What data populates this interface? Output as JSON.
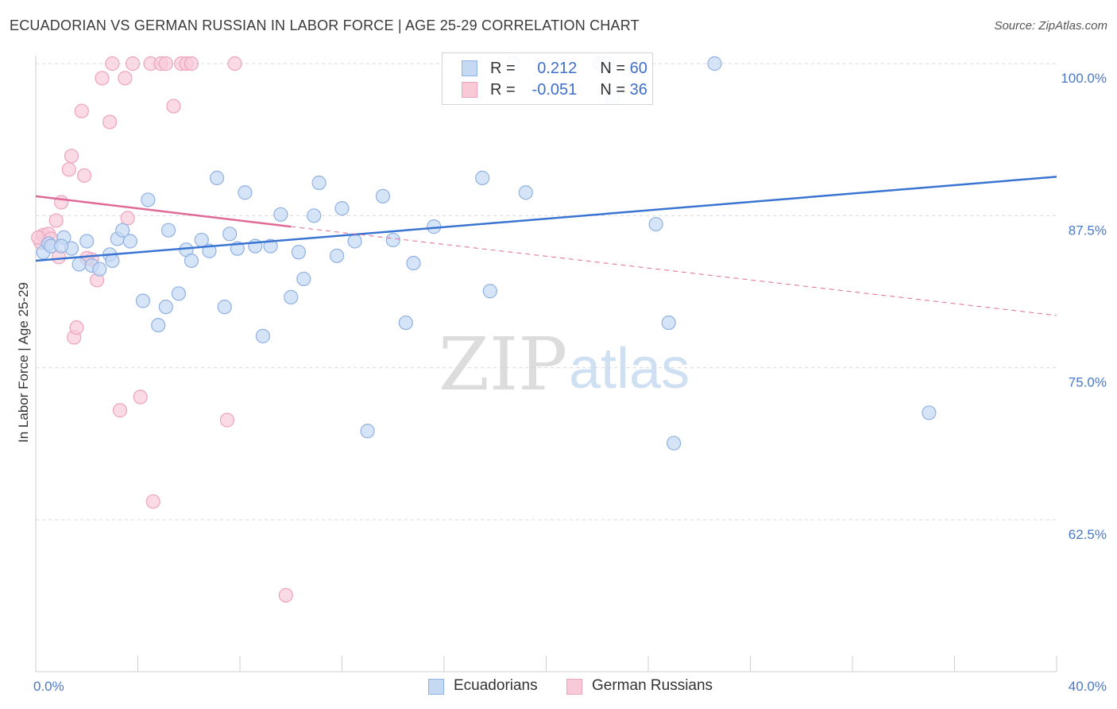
{
  "title": "ECUADORIAN VS GERMAN RUSSIAN IN LABOR FORCE | AGE 25-29 CORRELATION CHART",
  "source": "Source: ZipAtlas.com",
  "watermark": {
    "part1": "ZIP",
    "part2": "atlas"
  },
  "legend": {
    "rows": [
      {
        "r_label": "R = ",
        "r_value": "0.212",
        "n_label": "N = ",
        "n_value": "60"
      },
      {
        "r_label": "R = ",
        "r_value": "-0.051",
        "n_label": "N = ",
        "n_value": "36"
      }
    ]
  },
  "bottom_legend": [
    "Ecuadorians",
    "German Russians"
  ],
  "colors": {
    "blue": "#3a74d2",
    "blue_fill": "#c5d9f3",
    "blue_stroke": "#8fb1e3",
    "pink": "#e06a95",
    "pink_fill": "#f8cad8",
    "pink_stroke": "#eda3bc",
    "grid": "#d8d8d8",
    "tick_text": "#4a78c8"
  },
  "chart_data": {
    "type": "scatter",
    "title": "ECUADORIAN VS GERMAN RUSSIAN IN LABOR FORCE | AGE 25-29 CORRELATION CHART",
    "xlabel": "",
    "ylabel": "In Labor Force | Age 25-29",
    "xlim": [
      0,
      40
    ],
    "ylim": [
      50,
      101
    ],
    "x_tick_labels": [
      "0.0%",
      "40.0%"
    ],
    "y_ticks": [
      100,
      87.5,
      75,
      62.5
    ],
    "y_tick_labels": [
      "100.0%",
      "87.5%",
      "75.0%",
      "62.5%"
    ],
    "grid": true,
    "legend_placement": "top-center",
    "series": [
      {
        "name": "Ecuadorians",
        "r": 0.212,
        "n": 60,
        "trend": {
          "x0": 0,
          "y0": 83.8,
          "x1": 40,
          "y1": 90.7
        },
        "points": [
          [
            0.3,
            84.5
          ],
          [
            0.5,
            85.2
          ],
          [
            0.6,
            85.0
          ],
          [
            1.1,
            85.7
          ],
          [
            1.4,
            84.8
          ],
          [
            1.7,
            83.5
          ],
          [
            2.0,
            85.4
          ],
          [
            2.2,
            83.4
          ],
          [
            2.5,
            83.1
          ],
          [
            2.9,
            84.3
          ],
          [
            3.2,
            85.6
          ],
          [
            3.4,
            86.3
          ],
          [
            3.7,
            85.4
          ],
          [
            4.2,
            80.5
          ],
          [
            4.4,
            88.8
          ],
          [
            4.8,
            78.5
          ],
          [
            5.1,
            80.0
          ],
          [
            5.2,
            86.3
          ],
          [
            5.6,
            81.1
          ],
          [
            5.9,
            84.7
          ],
          [
            6.1,
            83.8
          ],
          [
            6.5,
            85.5
          ],
          [
            6.8,
            84.6
          ],
          [
            7.1,
            90.6
          ],
          [
            7.4,
            80.0
          ],
          [
            7.6,
            86.0
          ],
          [
            7.9,
            84.8
          ],
          [
            8.2,
            89.4
          ],
          [
            8.6,
            85.0
          ],
          [
            8.9,
            77.6
          ],
          [
            9.2,
            85.0
          ],
          [
            9.6,
            87.6
          ],
          [
            10.0,
            80.8
          ],
          [
            10.3,
            84.5
          ],
          [
            10.5,
            82.3
          ],
          [
            10.9,
            87.5
          ],
          [
            11.1,
            90.2
          ],
          [
            11.8,
            84.2
          ],
          [
            12.0,
            88.1
          ],
          [
            12.5,
            85.4
          ],
          [
            13.0,
            69.8
          ],
          [
            13.6,
            89.1
          ],
          [
            14.0,
            85.5
          ],
          [
            14.5,
            78.7
          ],
          [
            14.8,
            83.6
          ],
          [
            15.6,
            86.6
          ],
          [
            17.5,
            90.6
          ],
          [
            17.8,
            81.3
          ],
          [
            18.7,
            100.0
          ],
          [
            19.2,
            89.4
          ],
          [
            22.1,
            100.0
          ],
          [
            22.4,
            100.0
          ],
          [
            22.6,
            97.2
          ],
          [
            24.3,
            86.8
          ],
          [
            24.8,
            78.7
          ],
          [
            25.0,
            68.8
          ],
          [
            26.6,
            100.0
          ],
          [
            35.0,
            71.3
          ],
          [
            1.0,
            85.0
          ],
          [
            3.0,
            83.8
          ]
        ]
      },
      {
        "name": "German Russians",
        "r": -0.051,
        "n": 36,
        "trend": {
          "x0": 0,
          "y0": 89.1,
          "x1": 10,
          "y1": 86.6,
          "dash_x1": 40,
          "dash_y1": 79.3
        },
        "points": [
          [
            0.2,
            85.3
          ],
          [
            0.3,
            85.9
          ],
          [
            0.5,
            86.0
          ],
          [
            0.6,
            85.6
          ],
          [
            0.8,
            87.1
          ],
          [
            0.9,
            84.1
          ],
          [
            1.0,
            88.6
          ],
          [
            1.3,
            91.3
          ],
          [
            1.4,
            92.4
          ],
          [
            1.5,
            77.5
          ],
          [
            1.6,
            78.3
          ],
          [
            1.8,
            96.1
          ],
          [
            1.9,
            90.8
          ],
          [
            2.2,
            83.9
          ],
          [
            2.4,
            82.2
          ],
          [
            2.6,
            98.8
          ],
          [
            2.9,
            95.2
          ],
          [
            3.0,
            100.0
          ],
          [
            3.3,
            71.5
          ],
          [
            3.5,
            98.8
          ],
          [
            3.6,
            87.3
          ],
          [
            3.8,
            100.0
          ],
          [
            4.1,
            72.6
          ],
          [
            4.5,
            100.0
          ],
          [
            4.6,
            64.0
          ],
          [
            4.9,
            100.0
          ],
          [
            5.1,
            100.0
          ],
          [
            5.4,
            96.5
          ],
          [
            5.7,
            100.0
          ],
          [
            5.9,
            100.0
          ],
          [
            6.1,
            100.0
          ],
          [
            7.5,
            70.7
          ],
          [
            7.8,
            100.0
          ],
          [
            9.8,
            56.3
          ],
          [
            0.1,
            85.7
          ],
          [
            2.0,
            84.0
          ]
        ]
      }
    ]
  }
}
